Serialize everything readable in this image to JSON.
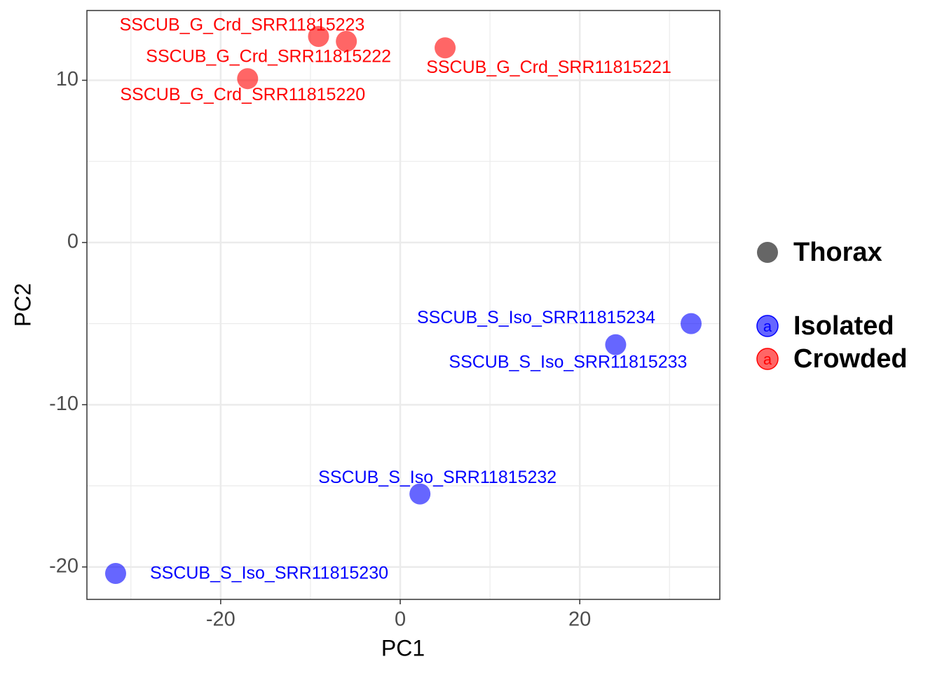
{
  "chart_data": {
    "type": "scatter",
    "x_label": "PC1",
    "y_label": "PC2",
    "xlim": [
      -34.9,
      35.6
    ],
    "ylim": [
      -22.0,
      14.3
    ],
    "xticks": [
      -20,
      0,
      20
    ],
    "yticks": [
      -20,
      -10,
      0,
      10
    ],
    "grid": true,
    "shape_legend": "Thorax",
    "point_alpha": 0.6,
    "series": [
      {
        "name": "Isolated",
        "color": "#0000ff",
        "x": [
          32.4,
          24.0,
          2.2,
          -31.7
        ],
        "values": [
          -5.0,
          -6.3,
          -15.5,
          -20.4
        ],
        "labels": [
          "SSCUB_S_Iso_SRR11815234",
          "SSCUB_S_Iso_SRR11815233",
          "SSCUB_S_Iso_SRR11815232",
          "SSCUB_S_Iso_SRR11815230"
        ]
      },
      {
        "name": "Crowded",
        "color": "#ff0000",
        "x": [
          -9.1,
          -6.0,
          5.0,
          -17.0
        ],
        "values": [
          12.7,
          12.4,
          12.0,
          10.1
        ],
        "labels": [
          "SSCUB_G_Crd_SRR11815223",
          "SSCUB_G_Crd_SRR11815222",
          "SSCUB_G_Crd_SRR11815221",
          "SSCUB_G_Crd_SRR11815220"
        ]
      }
    ]
  }
}
